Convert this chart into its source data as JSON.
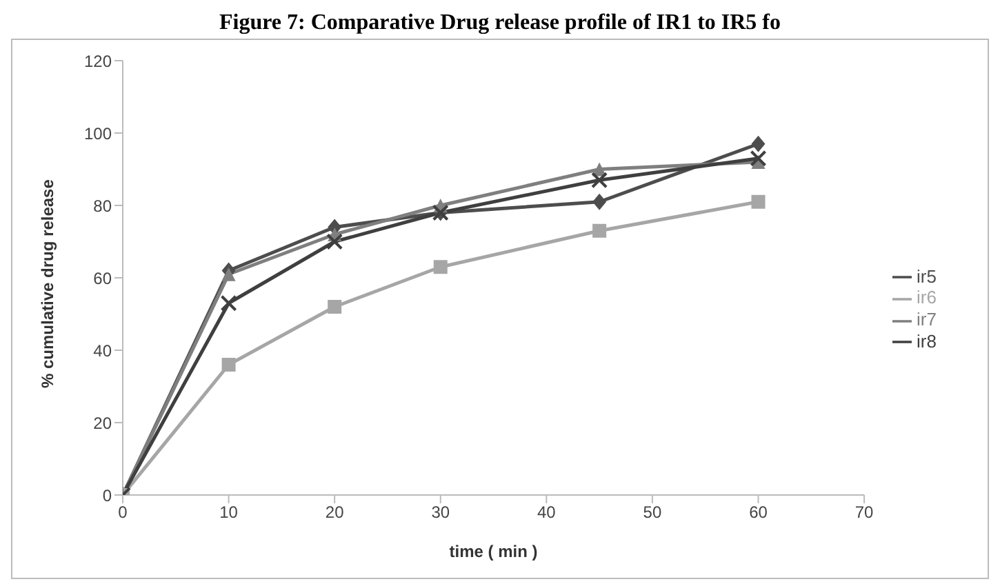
{
  "chart_data": {
    "type": "line",
    "title": "Figure 7: Comparative Drug release profile of IR1 to IR5 fo",
    "xlabel": "time ( min )",
    "ylabel": "% cumulative drug release",
    "x": [
      0,
      10,
      20,
      30,
      45,
      60
    ],
    "series": [
      {
        "name": "ir5",
        "color": "#4d4d4d",
        "marker": "diamond",
        "values": [
          0,
          62,
          74,
          78,
          81,
          97
        ]
      },
      {
        "name": "ir6",
        "color": "#a6a6a6",
        "marker": "square",
        "values": [
          0,
          36,
          52,
          63,
          73,
          81
        ]
      },
      {
        "name": "ir7",
        "color": "#7f7f7f",
        "marker": "triangle",
        "values": [
          0,
          61,
          72,
          80,
          90,
          92
        ]
      },
      {
        "name": "ir8",
        "color": "#3f3f3f",
        "marker": "cross",
        "values": [
          0,
          53,
          70,
          78,
          87,
          93
        ]
      }
    ],
    "xlim": [
      0,
      70
    ],
    "xticks": [
      0,
      10,
      20,
      30,
      40,
      50,
      60,
      70
    ],
    "ylim": [
      0,
      120
    ],
    "yticks": [
      0,
      20,
      40,
      60,
      80,
      100,
      120
    ],
    "grid": false,
    "legend": "right",
    "line_style": "solid"
  }
}
